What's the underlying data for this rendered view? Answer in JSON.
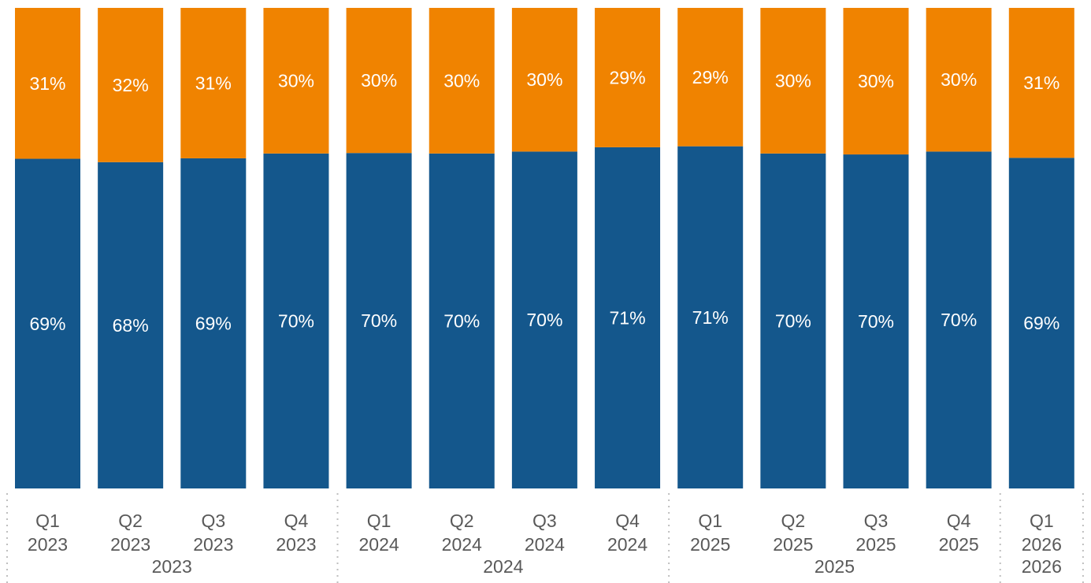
{
  "chart_data": {
    "type": "bar",
    "stacked": true,
    "normalized": true,
    "categories": [
      {
        "quarter": "Q1",
        "year": "2023"
      },
      {
        "quarter": "Q2",
        "year": "2023"
      },
      {
        "quarter": "Q3",
        "year": "2023"
      },
      {
        "quarter": "Q4",
        "year": "2023"
      },
      {
        "quarter": "Q1",
        "year": "2024"
      },
      {
        "quarter": "Q2",
        "year": "2024"
      },
      {
        "quarter": "Q3",
        "year": "2024"
      },
      {
        "quarter": "Q4",
        "year": "2024"
      },
      {
        "quarter": "Q1",
        "year": "2025"
      },
      {
        "quarter": "Q2",
        "year": "2025"
      },
      {
        "quarter": "Q3",
        "year": "2025"
      },
      {
        "quarter": "Q4",
        "year": "2025"
      },
      {
        "quarter": "Q1",
        "year": "2026"
      }
    ],
    "groups": [
      {
        "label": "2023",
        "count": 4
      },
      {
        "label": "2024",
        "count": 4
      },
      {
        "label": "2025",
        "count": 4
      },
      {
        "label": "2026",
        "count": 1
      }
    ],
    "series": [
      {
        "color": "#14578c",
        "values": [
          68.6,
          67.9,
          68.7,
          69.7,
          69.8,
          69.7,
          70.1,
          71.0,
          71.2,
          69.7,
          69.5,
          70.1,
          68.8
        ],
        "labels": [
          "69%",
          "68%",
          "69%",
          "70%",
          "70%",
          "70%",
          "70%",
          "71%",
          "71%",
          "70%",
          "70%",
          "70%",
          "69%"
        ]
      },
      {
        "color": "#f08300",
        "values": [
          31.4,
          32.1,
          31.3,
          30.3,
          30.2,
          30.3,
          29.9,
          29.0,
          28.8,
          30.3,
          30.5,
          29.9,
          31.2
        ],
        "labels": [
          "31%",
          "32%",
          "31%",
          "30%",
          "30%",
          "30%",
          "30%",
          "29%",
          "29%",
          "30%",
          "30%",
          "30%",
          "31%"
        ]
      }
    ],
    "ylim": [
      0,
      100
    ],
    "title": "",
    "xlabel": "",
    "ylabel": "",
    "legend": "none",
    "grid": false
  }
}
